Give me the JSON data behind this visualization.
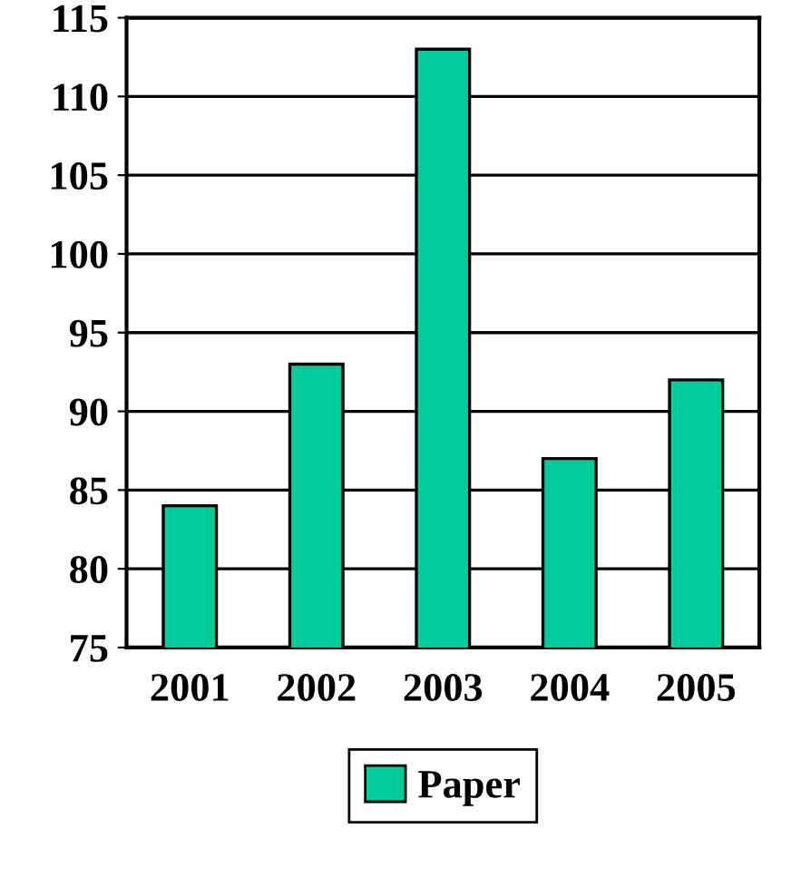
{
  "chart_data": {
    "type": "bar",
    "categories": [
      "2001",
      "2002",
      "2003",
      "2004",
      "2005"
    ],
    "series": [
      {
        "name": "Paper",
        "color": "#00cc99",
        "values": [
          84,
          93,
          113,
          87,
          92
        ]
      }
    ],
    "ylim": [
      75,
      115
    ],
    "yticks": [
      75,
      80,
      85,
      90,
      95,
      100,
      105,
      110,
      115
    ],
    "grid": "y",
    "legend": "bottom"
  }
}
